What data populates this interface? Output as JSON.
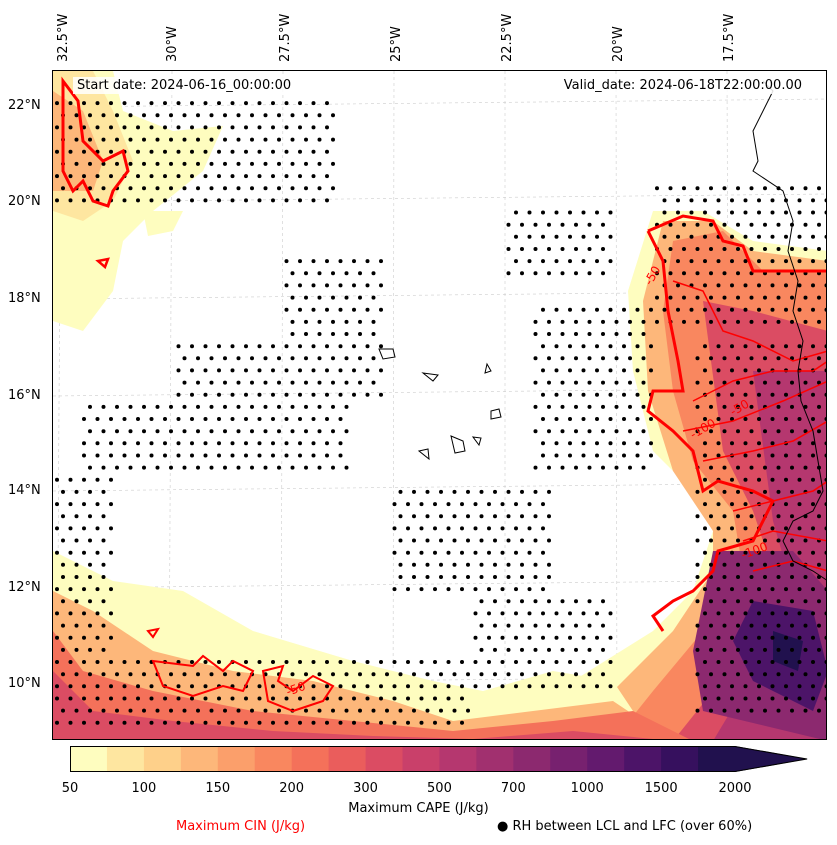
{
  "header": {
    "start_date": "Start date: 2024-06-16_00:00:00",
    "valid_date": "Valid_date: 2024-06-18T22:00:00.00"
  },
  "axes": {
    "longitudes": [
      "32.5°W",
      "30°W",
      "27.5°W",
      "25°W",
      "22.5°W",
      "20°W",
      "17.5°W"
    ],
    "latitudes": [
      "22°N",
      "20°N",
      "18°N",
      "16°N",
      "14°N",
      "12°N",
      "10°N"
    ]
  },
  "colorbar": {
    "label": "Maximum CAPE (J/kg)",
    "ticks": [
      "50",
      "100",
      "150",
      "200",
      "300",
      "500",
      "700",
      "1000",
      "1500",
      "2000"
    ],
    "colors": [
      "#fefdbf",
      "#fee6a0",
      "#fed08a",
      "#fdb77a",
      "#fb9f6b",
      "#f9875f",
      "#f4715a",
      "#ea5d5c",
      "#db4c63",
      "#c9406a",
      "#b5376f",
      "#a1306f",
      "#8c296f",
      "#77216f",
      "#631a6e",
      "#4c1468",
      "#36105e",
      "#21114e"
    ],
    "extend": "max"
  },
  "legend": {
    "cin_label": "Maximum CIN (J/kg)",
    "cin_color": "#ff0000",
    "rh_label": "RH between LCL and LFC (over 60%)"
  },
  "contour_labels": [
    "-50",
    "-100",
    "-50",
    "-100",
    "-50"
  ]
}
